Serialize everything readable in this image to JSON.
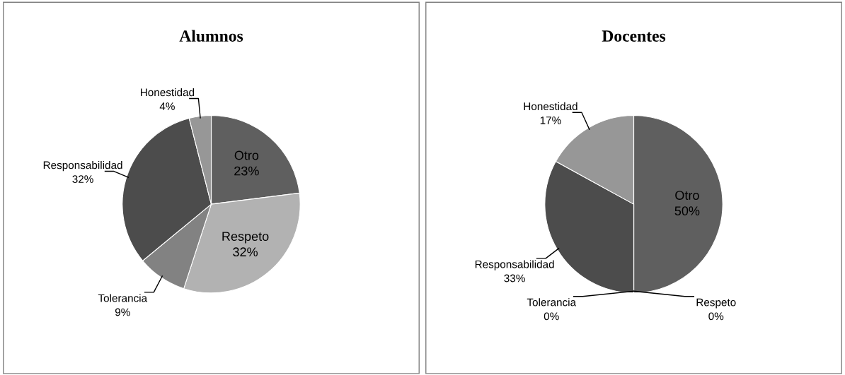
{
  "chart_data": [
    {
      "type": "pie",
      "title": "Alumnos",
      "categories": [
        "Otro",
        "Respeto",
        "Tolerancia",
        "Responsabilidad",
        "Honestidad"
      ],
      "values": [
        23,
        32,
        9,
        32,
        4
      ],
      "colors": [
        "#5f5f5f",
        "#b2b2b2",
        "#828282",
        "#4c4c4c",
        "#979797"
      ],
      "value_labels": [
        "23%",
        "32%",
        "9%",
        "32%",
        "4%"
      ]
    },
    {
      "type": "pie",
      "title": "Docentes",
      "categories": [
        "Otro",
        "Respeto",
        "Tolerancia",
        "Responsabilidad",
        "Honestidad"
      ],
      "values": [
        50,
        0,
        0,
        33,
        17
      ],
      "colors": [
        "#5f5f5f",
        "#b2b2b2",
        "#828282",
        "#4c4c4c",
        "#979797"
      ],
      "value_labels": [
        "50%",
        "0%",
        "0%",
        "33%",
        "17%"
      ]
    }
  ]
}
